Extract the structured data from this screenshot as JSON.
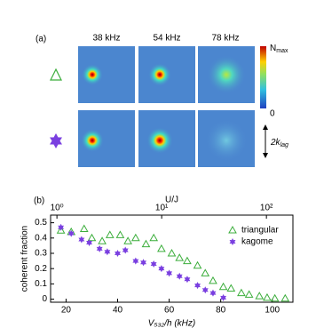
{
  "panel_a": {
    "label": "(a)",
    "columns": [
      "38 kHz",
      "54 kHz",
      "78 kHz"
    ],
    "colorbar": {
      "max_main": "N",
      "max_sub": "max",
      "min_label": "0"
    },
    "scale_main": "2k",
    "scale_sub": "lag"
  },
  "chart_data": {
    "type": "scatter",
    "label": "(b)",
    "xlabel": "V₅₃₂/h (kHz)",
    "ylabel": "coherent fraction",
    "x2label": "U/J",
    "xlim": [
      14,
      108
    ],
    "xticks": [
      20,
      40,
      60,
      80,
      100
    ],
    "ylim": [
      -0.02,
      0.55
    ],
    "yticks": [
      0,
      0.1,
      0.2,
      0.3,
      0.4,
      0.5
    ],
    "x2lim": [
      0.87,
      179
    ],
    "x2scale": "log",
    "x2ticks": [
      {
        "value": 1,
        "label": "10⁰"
      },
      {
        "value": 10,
        "label": "10¹"
      },
      {
        "value": 100,
        "label": "10²"
      }
    ],
    "legend": "upper right",
    "series": [
      {
        "name": "triangular",
        "color": "#3cae3c",
        "marker": "triangle",
        "x": [
          18,
          22,
          27,
          30,
          34,
          37,
          41,
          44,
          47,
          51,
          54,
          57,
          61,
          64,
          67,
          71,
          74,
          77,
          81,
          84,
          88,
          91,
          95,
          98,
          101,
          105
        ],
        "values": [
          0.45,
          0.44,
          0.46,
          0.4,
          0.38,
          0.42,
          0.42,
          0.38,
          0.4,
          0.36,
          0.4,
          0.33,
          0.3,
          0.27,
          0.25,
          0.22,
          0.17,
          0.12,
          0.08,
          0.07,
          0.04,
          0.03,
          0.02,
          0.01,
          0.005,
          0.005
        ]
      },
      {
        "name": "kagome",
        "color": "#7a3fe0",
        "marker": "star",
        "x": [
          18,
          22,
          26,
          29,
          33,
          36,
          40,
          43,
          47,
          50,
          54,
          57,
          60,
          64,
          67,
          71,
          74,
          77,
          81
        ],
        "values": [
          0.47,
          0.43,
          0.39,
          0.37,
          0.33,
          0.31,
          0.3,
          0.32,
          0.25,
          0.24,
          0.23,
          0.2,
          0.17,
          0.15,
          0.13,
          0.09,
          0.06,
          0.04,
          0.01
        ]
      }
    ]
  }
}
